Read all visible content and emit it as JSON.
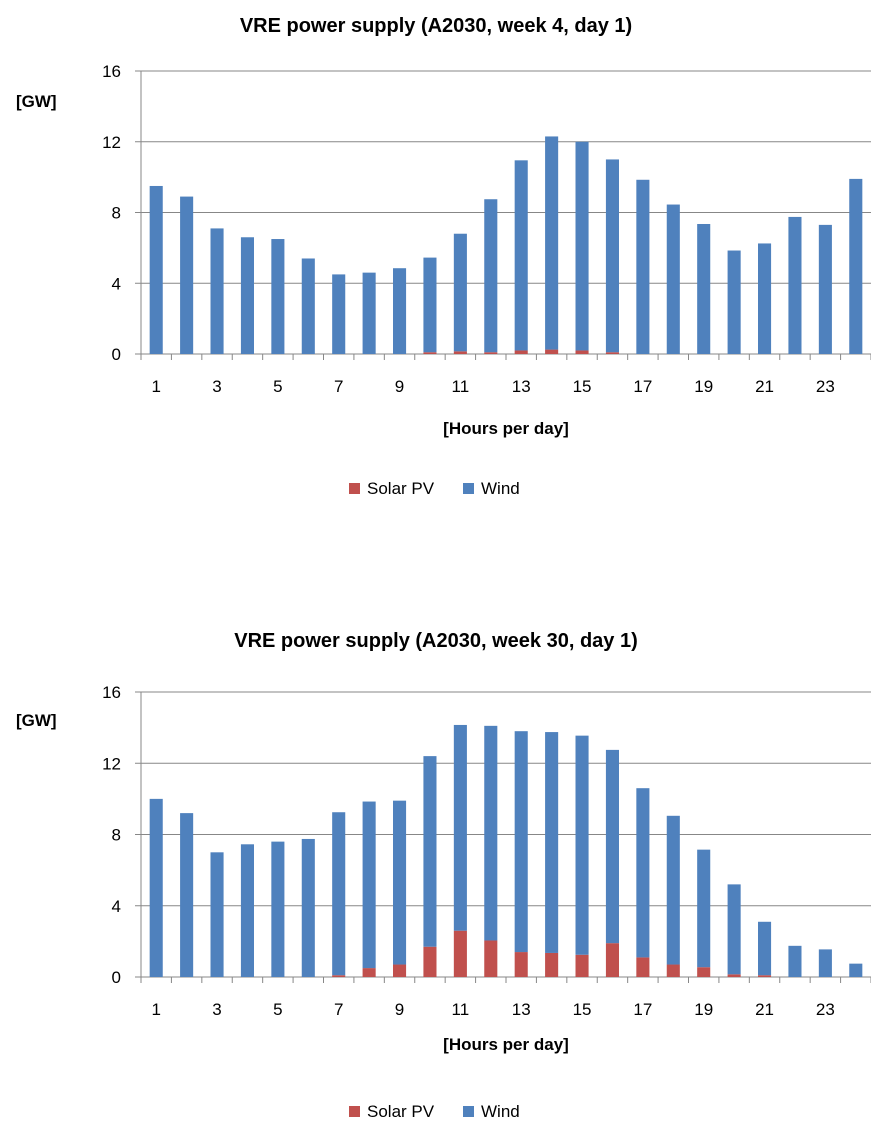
{
  "chart_data": [
    {
      "type": "bar",
      "stacked": true,
      "title": "VRE power supply (A2030, week 4, day 1)",
      "ylabel": "[GW]",
      "xlabel": "[Hours per day]",
      "ylim": [
        0,
        16
      ],
      "yticks": [
        "0",
        "4",
        "8",
        "12",
        "16"
      ],
      "grid": true,
      "legend_position": "bottom",
      "categories": [
        "1",
        "2",
        "3",
        "4",
        "5",
        "6",
        "7",
        "8",
        "9",
        "10",
        "11",
        "12",
        "13",
        "14",
        "15",
        "16",
        "17",
        "18",
        "19",
        "20",
        "21",
        "22",
        "23",
        "24"
      ],
      "xtick_labels": [
        "1",
        "3",
        "5",
        "7",
        "9",
        "11",
        "13",
        "15",
        "17",
        "19",
        "21",
        "23"
      ],
      "series": [
        {
          "name": "Solar PV",
          "color": "#C0504D",
          "values": [
            0,
            0,
            0,
            0,
            0,
            0,
            0,
            0,
            0,
            0.1,
            0.15,
            0.1,
            0.2,
            0.25,
            0.2,
            0.1,
            0,
            0,
            0,
            0,
            0,
            0,
            0,
            0
          ]
        },
        {
          "name": "Wind",
          "color": "#4F81BD",
          "values": [
            9.5,
            8.9,
            7.1,
            6.6,
            6.5,
            5.4,
            4.5,
            4.6,
            4.85,
            5.35,
            6.65,
            8.65,
            10.75,
            12.05,
            11.8,
            10.9,
            9.85,
            8.45,
            7.35,
            5.85,
            6.25,
            7.75,
            7.3,
            9.9
          ]
        }
      ]
    },
    {
      "type": "bar",
      "stacked": true,
      "title": "VRE power supply (A2030, week 30, day 1)",
      "ylabel": "[GW]",
      "xlabel": "[Hours per day]",
      "ylim": [
        0,
        16
      ],
      "yticks": [
        "0",
        "4",
        "8",
        "12",
        "16"
      ],
      "grid": true,
      "legend_position": "bottom",
      "categories": [
        "1",
        "2",
        "3",
        "4",
        "5",
        "6",
        "7",
        "8",
        "9",
        "10",
        "11",
        "12",
        "13",
        "14",
        "15",
        "16",
        "17",
        "18",
        "19",
        "20",
        "21",
        "22",
        "23",
        "24"
      ],
      "xtick_labels": [
        "1",
        "3",
        "5",
        "7",
        "9",
        "11",
        "13",
        "15",
        "17",
        "19",
        "21",
        "23"
      ],
      "series": [
        {
          "name": "Solar PV",
          "color": "#C0504D",
          "values": [
            0,
            0,
            0,
            0,
            0,
            0,
            0.1,
            0.5,
            0.7,
            1.7,
            2.6,
            2.05,
            1.4,
            1.35,
            1.25,
            1.9,
            1.1,
            0.7,
            0.55,
            0.15,
            0.1,
            0,
            0,
            0
          ]
        },
        {
          "name": "Wind",
          "color": "#4F81BD",
          "values": [
            10,
            9.2,
            7,
            7.45,
            7.6,
            7.75,
            9.15,
            9.35,
            9.2,
            10.7,
            11.55,
            12.05,
            12.4,
            12.4,
            12.3,
            10.85,
            9.5,
            8.35,
            6.6,
            5.05,
            3,
            1.75,
            1.55,
            0.75
          ]
        }
      ]
    }
  ]
}
